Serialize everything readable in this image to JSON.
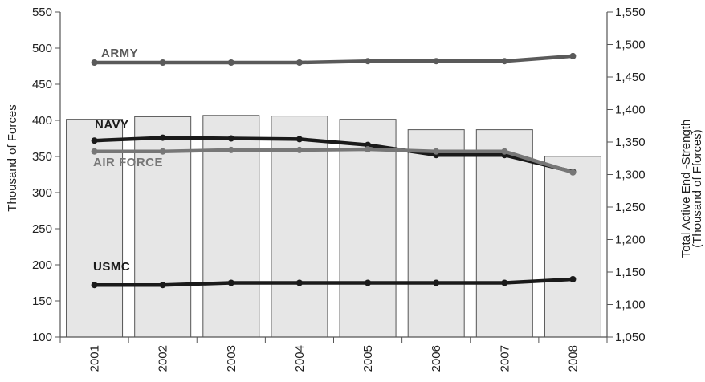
{
  "chart_data": {
    "type": "bar+line",
    "categories": [
      "2001",
      "2002",
      "2003",
      "2004",
      "2005",
      "2006",
      "2007",
      "2008"
    ],
    "bars": {
      "axis": "right",
      "values": [
        1385,
        1389,
        1391,
        1390,
        1385,
        1369,
        1369,
        1328
      ],
      "color": "#e6e6e6"
    },
    "series": [
      {
        "name": "ARMY",
        "axis": "left",
        "color": "#5a5a5a",
        "values": [
          480,
          480,
          480,
          480,
          482,
          482,
          482,
          489
        ]
      },
      {
        "name": "NAVY",
        "axis": "left",
        "color": "#1a1a1a",
        "values": [
          372,
          376,
          375,
          374,
          366,
          352,
          352,
          329
        ]
      },
      {
        "name": "AIR FORCE",
        "axis": "left",
        "color": "#777777",
        "values": [
          357,
          357,
          359,
          359,
          360,
          357,
          357,
          328
        ]
      },
      {
        "name": "USMC",
        "axis": "left",
        "color": "#1a1a1a",
        "values": [
          172,
          172,
          175,
          175,
          175,
          175,
          175,
          180
        ]
      }
    ],
    "left_axis": {
      "label": "Thousand of Forces",
      "min": 100,
      "max": 550,
      "step": 50,
      "ticks": [
        "100",
        "150",
        "200",
        "250",
        "300",
        "350",
        "400",
        "450",
        "500",
        "550"
      ]
    },
    "right_axis": {
      "label_line1": "Total Active End -Strength",
      "label_line2": "(Thousand of Fforces)",
      "min": 1050,
      "max": 1550,
      "step": 50,
      "ticks": [
        "1,050",
        "1,100",
        "1,150",
        "1,200",
        "1,250",
        "1,300",
        "1,350",
        "1,400",
        "1,450",
        "1,500",
        "1,550"
      ]
    },
    "grid": false
  }
}
